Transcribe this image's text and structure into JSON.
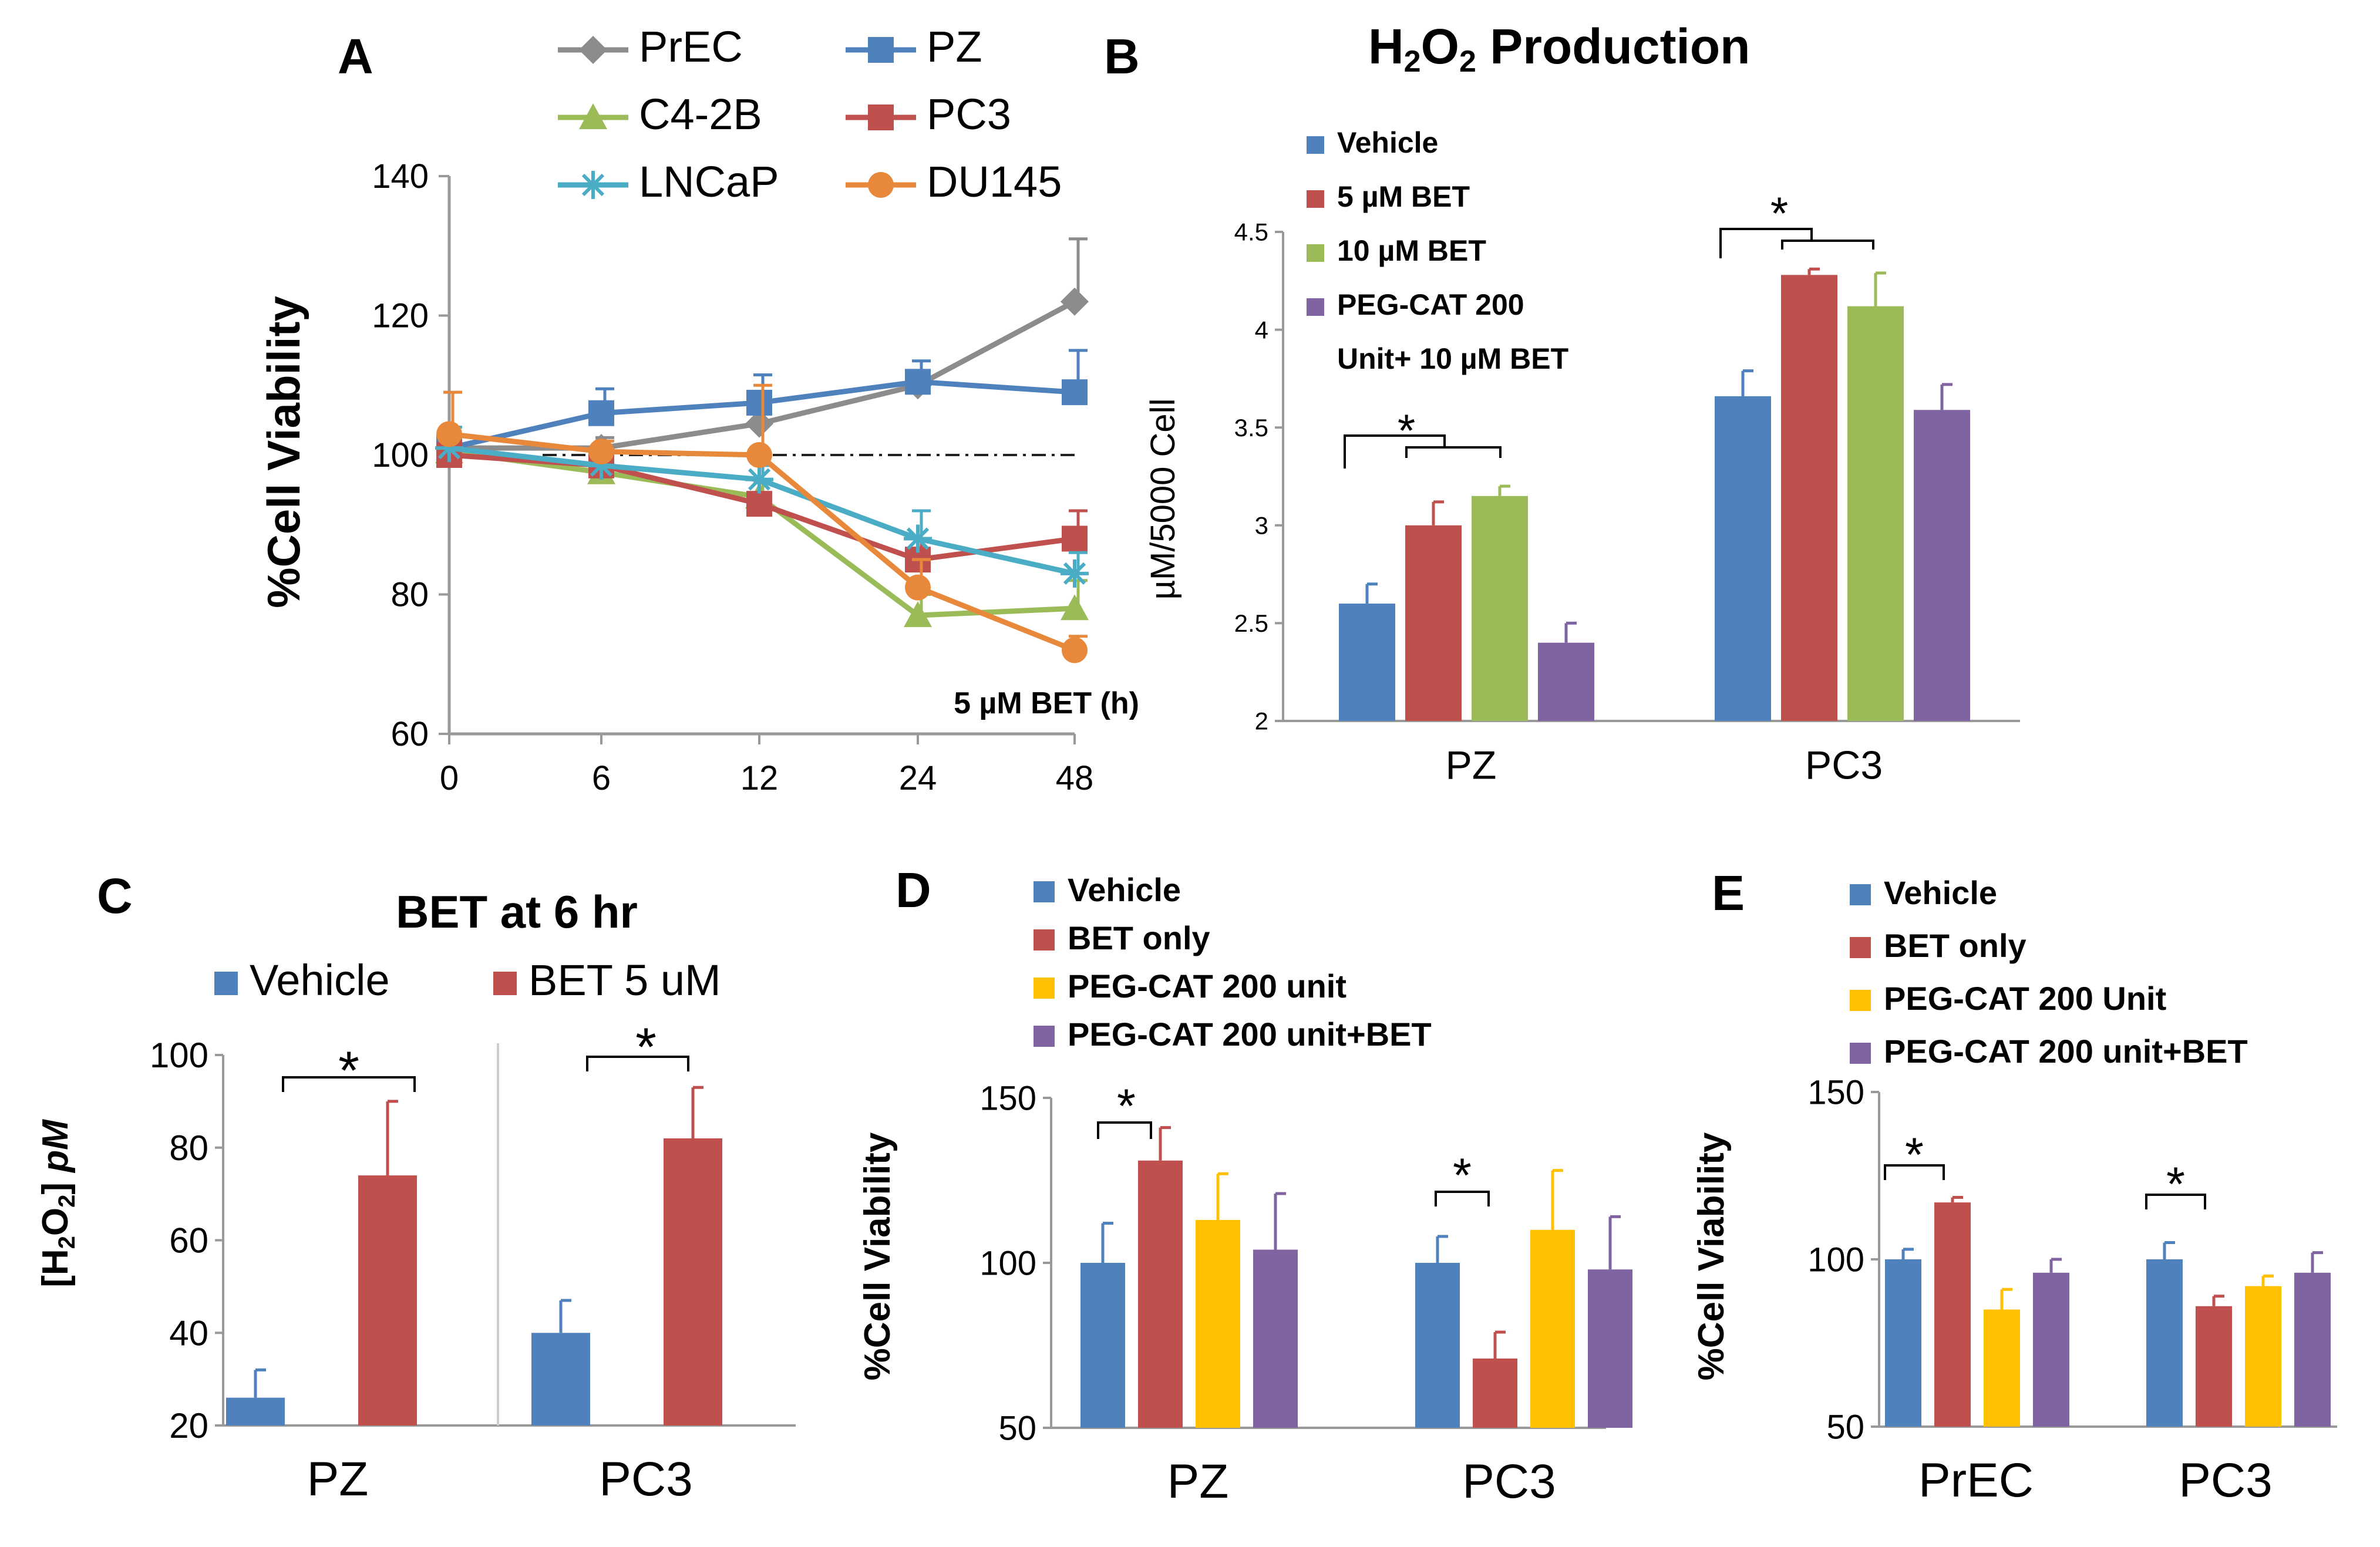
{
  "colors": {
    "blue": "#4f81bd",
    "red": "#c0504d",
    "green": "#9bbb59",
    "purple": "#8064a2",
    "yellow": "#ffc000",
    "gray": "#8c8c8c",
    "teal": "#4bacc6",
    "orange": "#e8883a"
  },
  "chart_data": [
    {
      "id": "A",
      "panel_label": "A",
      "type": "line",
      "title": "",
      "xlabel": "5 µM BET (h)",
      "ylabel": "%Cell  Viability",
      "x": [
        0,
        6,
        12,
        24,
        48
      ],
      "x_tick_labels": [
        "0",
        "6",
        "12",
        "24",
        "48"
      ],
      "ylim": [
        60,
        140
      ],
      "y_ticks": [
        60,
        80,
        100,
        120,
        140
      ],
      "reference_line": 100,
      "legend_placement": "top",
      "series": [
        {
          "name": "PrEC",
          "marker": "diamond",
          "color": "#8c8c8c",
          "values": [
            101,
            101,
            104.5,
            110,
            122
          ],
          "errors": [
            3,
            1.5,
            2,
            1,
            9
          ]
        },
        {
          "name": "PZ",
          "marker": "square",
          "color": "#4f81bd",
          "values": [
            101,
            106,
            107.5,
            110.5,
            109
          ],
          "errors": [
            3,
            3.5,
            4,
            3,
            6
          ]
        },
        {
          "name": "C4-2B",
          "marker": "triangle",
          "color": "#9bbb59",
          "values": [
            100.5,
            97.5,
            94,
            77,
            78
          ],
          "errors": [
            2,
            2,
            2,
            3,
            4
          ]
        },
        {
          "name": "PC3",
          "marker": "square",
          "color": "#c0504d",
          "values": [
            100,
            98.5,
            93,
            85,
            88
          ],
          "errors": [
            2,
            2,
            1.5,
            3,
            4
          ]
        },
        {
          "name": "LNCaP",
          "marker": "star",
          "color": "#4bacc6",
          "values": [
            101,
            98.5,
            96.5,
            88,
            83
          ],
          "errors": [
            3,
            2,
            2,
            4,
            3
          ]
        },
        {
          "name": "DU145",
          "marker": "circle",
          "color": "#e8883a",
          "values": [
            103,
            100.5,
            100,
            81,
            72
          ],
          "errors": [
            6,
            1.5,
            10,
            4,
            2
          ]
        }
      ]
    },
    {
      "id": "B",
      "panel_label": "B",
      "type": "bar",
      "title": "H2O2 Production",
      "title_main": "H",
      "title_sub1": "2",
      "title_mid": "O",
      "title_sub2": "2",
      "title_end": " Production",
      "xlabel": "",
      "ylabel": "µM/5000 Cell",
      "categories": [
        "PZ",
        "PC3"
      ],
      "ylim": [
        2,
        4.5
      ],
      "y_ticks": [
        2,
        2.5,
        3,
        3.5,
        4,
        4.5
      ],
      "y_tick_labels": [
        "2",
        "2.5",
        "3",
        "3.5",
        "4",
        "4.5"
      ],
      "legend_placement": "top-left",
      "series": [
        {
          "name": "Vehicle",
          "legend_lines": [
            "Vehicle"
          ],
          "color": "#4f81bd",
          "values": [
            2.6,
            3.66
          ],
          "errors": [
            0.1,
            0.13
          ]
        },
        {
          "name": "5 µM BET",
          "legend_lines": [
            "5 µM BET"
          ],
          "color": "#c0504d",
          "values": [
            3.0,
            4.28
          ],
          "errors": [
            0.12,
            0.03
          ]
        },
        {
          "name": "10 µM BET",
          "legend_lines": [
            "10 µM BET"
          ],
          "color": "#9bbb59",
          "values": [
            3.15,
            4.12
          ],
          "errors": [
            0.05,
            0.17
          ]
        },
        {
          "name": "PEG-CAT 200 Unit+ 10 µM BET",
          "legend_lines": [
            "PEG-CAT 200",
            "Unit+ 10 µM BET"
          ],
          "color": "#8064a2",
          "values": [
            2.4,
            3.59
          ],
          "errors": [
            0.1,
            0.13
          ]
        }
      ],
      "significance": [
        {
          "category": 0,
          "label": "*"
        },
        {
          "category": 1,
          "label": "*"
        }
      ]
    },
    {
      "id": "C",
      "panel_label": "C",
      "type": "bar",
      "title": "BET at 6 hr",
      "xlabel": "",
      "ylabel": "[H2O2] pM",
      "ylabel_parts": {
        "open": "[H",
        "sub1": "2",
        "mid": "O",
        "sub2": "2",
        "close": "] ",
        "unit": "pM"
      },
      "categories": [
        "PZ",
        "PC3"
      ],
      "ylim": [
        20,
        100
      ],
      "y_ticks": [
        20,
        40,
        60,
        80,
        100
      ],
      "legend_placement": "top",
      "series": [
        {
          "name": "Vehicle",
          "legend_lines": [
            "Vehicle"
          ],
          "color": "#4f81bd",
          "values": [
            26,
            40
          ],
          "errors": [
            6,
            7
          ]
        },
        {
          "name": "BET 5 uM",
          "legend_lines": [
            "BET 5 uM"
          ],
          "color": "#c0504d",
          "values": [
            74,
            82
          ],
          "errors": [
            16,
            11
          ]
        }
      ],
      "significance": [
        {
          "category": 0,
          "label": "*"
        },
        {
          "category": 1,
          "label": "*"
        }
      ]
    },
    {
      "id": "D",
      "panel_label": "D",
      "type": "bar",
      "title": "",
      "xlabel": "",
      "ylabel": "%Cell Viability",
      "categories": [
        "PZ",
        "PC3"
      ],
      "ylim": [
        50,
        150
      ],
      "y_ticks": [
        50,
        100,
        150
      ],
      "legend_placement": "top",
      "series": [
        {
          "name": "Vehicle",
          "legend_lines": [
            "Vehicle"
          ],
          "color": "#4f81bd",
          "values": [
            100,
            100
          ],
          "errors": [
            12,
            8
          ]
        },
        {
          "name": "BET only",
          "legend_lines": [
            "BET only"
          ],
          "color": "#c0504d",
          "values": [
            131,
            71
          ],
          "errors": [
            10,
            8
          ]
        },
        {
          "name": "PEG-CAT 200 unit",
          "legend_lines": [
            "PEG-CAT 200 unit"
          ],
          "color": "#ffc000",
          "values": [
            113,
            110
          ],
          "errors": [
            14,
            18
          ]
        },
        {
          "name": "PEG-CAT 200 unit+BET",
          "legend_lines": [
            "PEG-CAT 200 unit+BET"
          ],
          "color": "#8064a2",
          "values": [
            104,
            98
          ],
          "errors": [
            17,
            16
          ]
        }
      ],
      "significance": [
        {
          "category": 0,
          "label": "*"
        },
        {
          "category": 1,
          "label": "*"
        }
      ]
    },
    {
      "id": "E",
      "panel_label": "E",
      "type": "bar",
      "title": "",
      "xlabel": "",
      "ylabel": "%Cell Viability",
      "categories": [
        "PrEC",
        "PC3"
      ],
      "ylim": [
        50,
        150
      ],
      "y_ticks": [
        50,
        100,
        150
      ],
      "legend_placement": "top",
      "series": [
        {
          "name": "Vehicle",
          "legend_lines": [
            "Vehicle"
          ],
          "color": "#4f81bd",
          "values": [
            100,
            100
          ],
          "errors": [
            3,
            5
          ]
        },
        {
          "name": "BET only",
          "legend_lines": [
            "BET only"
          ],
          "color": "#c0504d",
          "values": [
            117,
            86
          ],
          "errors": [
            1.5,
            3
          ]
        },
        {
          "name": "PEG-CAT 200 Unit",
          "legend_lines": [
            "PEG-CAT 200 Unit"
          ],
          "color": "#ffc000",
          "values": [
            85,
            92
          ],
          "errors": [
            6,
            3
          ]
        },
        {
          "name": "PEG-CAT 200 unit+BET",
          "legend_lines": [
            "PEG-CAT 200 unit+BET"
          ],
          "color": "#8064a2",
          "values": [
            96,
            96
          ],
          "errors": [
            4,
            6
          ]
        }
      ],
      "significance": [
        {
          "category": 0,
          "label": "*"
        },
        {
          "category": 1,
          "label": "*"
        }
      ]
    }
  ]
}
